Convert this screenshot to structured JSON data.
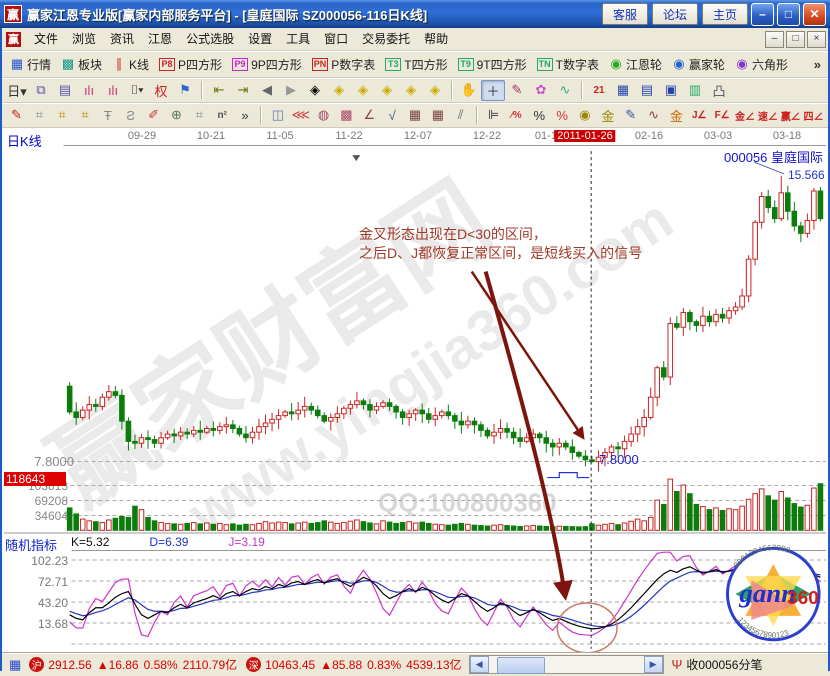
{
  "window": {
    "icon": "赢",
    "title": "赢家江恩专业版[赢家内部服务平台] - [皇庭国际  SZ000056-116日K线]",
    "buttons": [
      "客服",
      "论坛",
      "主页"
    ],
    "controls": {
      "minimize": "–",
      "maximize": "□",
      "close": "✕"
    }
  },
  "menu": {
    "icon": "赢",
    "items": [
      "文件",
      "浏览",
      "资讯",
      "江恩",
      "公式选股",
      "设置",
      "工具",
      "窗口",
      "交易委托",
      "帮助"
    ],
    "controls": [
      "–",
      "□",
      "×"
    ]
  },
  "toolbar_main": {
    "overflow": "»",
    "items": [
      {
        "name": "quotes",
        "label": "行情",
        "glyph": "▦",
        "color": "#2255cc",
        "boxed": false
      },
      {
        "name": "sectors",
        "label": "板块",
        "glyph": "▩",
        "color": "#119988",
        "boxed": false
      },
      {
        "name": "kline",
        "label": "K线",
        "glyph": "∥",
        "color": "#cc3333",
        "boxed": false
      },
      {
        "name": "p-square",
        "label": "P四方形",
        "glyph": "P8",
        "color": "#cc2222",
        "boxed": true
      },
      {
        "name": "9p-square",
        "label": "9P四方形",
        "glyph": "P9",
        "color": "#cc22cc",
        "boxed": true
      },
      {
        "name": "p-table",
        "label": "P数字表",
        "glyph": "PN",
        "color": "#cc2222",
        "boxed": true
      },
      {
        "name": "t-square",
        "label": "T四方形",
        "glyph": "T3",
        "color": "#22aa66",
        "boxed": true
      },
      {
        "name": "9t-square",
        "label": "9T四方形",
        "glyph": "T9",
        "color": "#22aa66",
        "boxed": true
      },
      {
        "name": "t-table",
        "label": "T数字表",
        "glyph": "TN",
        "color": "#22aa66",
        "boxed": true
      },
      {
        "name": "gann-wheel",
        "label": "江恩轮",
        "glyph": "◉",
        "color": "#22aa22",
        "boxed": false
      },
      {
        "name": "winner-wheel",
        "label": "赢家轮",
        "glyph": "◉",
        "color": "#2266cc",
        "boxed": false
      },
      {
        "name": "hexagon",
        "label": "六角形",
        "glyph": "◉",
        "color": "#8833cc",
        "boxed": false
      }
    ]
  },
  "toolbar_tools": {
    "items": [
      {
        "name": "period-day-dropdown",
        "glyph": "日▾",
        "color": "#333333"
      },
      {
        "name": "region-select-icon",
        "glyph": "⧉",
        "color": "#5555aa"
      },
      {
        "name": "info-panel-icon",
        "glyph": "▤",
        "color": "#5555aa"
      },
      {
        "name": "bars-small-icon",
        "glyph": "ılı",
        "color": "#cc3377"
      },
      {
        "name": "bars-large-icon",
        "glyph": "ılı",
        "color": "#cc3377"
      },
      {
        "name": "candle-style-dropdown",
        "glyph": "⌷▾",
        "color": "#333333"
      },
      {
        "name": "exrights-icon",
        "glyph": "权",
        "color": "#cc2222"
      },
      {
        "name": "flag-icon",
        "glyph": "⚑",
        "color": "#3366cc"
      },
      {
        "sep": true
      },
      {
        "name": "first-page-icon",
        "glyph": "⇤",
        "color": "#667700"
      },
      {
        "name": "last-page-icon",
        "glyph": "⇥",
        "color": "#667700"
      },
      {
        "name": "prev-bar-icon",
        "glyph": "◀",
        "color": "#666666"
      },
      {
        "name": "next-bar-icon",
        "glyph": "▶",
        "color": "#999999"
      },
      {
        "name": "zoom-out-h-icon",
        "glyph": "◈",
        "color": "#cc aa00"
      },
      {
        "name": "zoom-in-h-icon",
        "glyph": "◈",
        "color": "#ccaa00"
      },
      {
        "name": "expand-h-icon",
        "glyph": "◈",
        "color": "#ccaa00"
      },
      {
        "name": "compress-h-icon",
        "glyph": "◈",
        "color": "#ccaa00"
      },
      {
        "name": "expand-v-icon",
        "glyph": "◈",
        "color": "#ccaa00"
      },
      {
        "name": "compress-v-icon",
        "glyph": "◈",
        "color": "#ccaa00"
      },
      {
        "sep": true
      },
      {
        "name": "hand-tool-icon",
        "glyph": "✋",
        "color": "#aa7744"
      },
      {
        "name": "crosshair-tool-icon",
        "glyph": "＋",
        "color": "#333333",
        "active": true
      },
      {
        "name": "polyline-tool-icon",
        "glyph": "✎",
        "color": "#aa3366"
      },
      {
        "name": "flower-tool-icon",
        "glyph": "✿",
        "color": "#cc55cc"
      },
      {
        "name": "wave-tool-icon",
        "glyph": "∿",
        "color": "#33aa88"
      },
      {
        "sep": true
      },
      {
        "name": "calendar-21-icon",
        "glyph": "21",
        "color": "#cc2222",
        "small": true
      },
      {
        "name": "calculator-icon",
        "glyph": "▦",
        "color": "#2244aa"
      },
      {
        "name": "notes-icon",
        "glyph": "▤",
        "color": "#2244aa"
      },
      {
        "name": "save-icon",
        "glyph": "▣",
        "color": "#2244aa"
      },
      {
        "name": "chart-export-icon",
        "glyph": "▥",
        "color": "#22aa66"
      },
      {
        "name": "printer-icon",
        "glyph": "凸",
        "color": "#555566"
      }
    ]
  },
  "toolbar_draw": {
    "items": [
      {
        "name": "brush-icon",
        "glyph": "✎",
        "color": "#cc2222"
      },
      {
        "name": "grid-icon",
        "glyph": "⌗",
        "color": "#888888"
      },
      {
        "name": "gann-grid-icon",
        "glyph": "⌗",
        "color": "#bb8800"
      },
      {
        "name": "gann-grid2-icon",
        "glyph": "⌗",
        "color": "#bb8800"
      },
      {
        "name": "fan-tool-icon",
        "glyph": "Ŧ",
        "color": "#888888"
      },
      {
        "name": "arc-tool-icon",
        "glyph": "Ƨ",
        "color": "#888888"
      },
      {
        "name": "pen-red-icon",
        "glyph": "✐",
        "color": "#cc3333"
      },
      {
        "name": "circle-grid-icon",
        "glyph": "⊕",
        "color": "#557755"
      },
      {
        "name": "hash-grid-icon",
        "glyph": "⌗",
        "color": "#888888"
      },
      {
        "name": "n-square-icon",
        "glyph": "n²",
        "color": "#555555",
        "small": true
      },
      {
        "name": "more-draw-icon",
        "glyph": "»",
        "color": "#333333"
      },
      {
        "sep": true
      },
      {
        "name": "frame-tool-icon",
        "glyph": "◫",
        "color": "#6677aa"
      },
      {
        "name": "rays-icon",
        "glyph": "⋘",
        "color": "#cc4444"
      },
      {
        "name": "circle-m-icon",
        "glyph": "◍",
        "color": "#aa4466"
      },
      {
        "name": "pattern-icon",
        "glyph": "▩",
        "color": "#aa4466"
      },
      {
        "name": "angle-lines-icon",
        "glyph": "∠",
        "color": "#884444"
      },
      {
        "name": "check-wave-icon",
        "glyph": "√",
        "color": "#445588"
      },
      {
        "name": "net-icon",
        "glyph": "▦",
        "color": "#774444"
      },
      {
        "name": "net2-icon",
        "glyph": "▦",
        "color": "#774444"
      },
      {
        "name": "parallel-icon",
        "glyph": "⫽",
        "color": "#666666"
      },
      {
        "sep": true
      },
      {
        "name": "ladder-icon",
        "glyph": "⊫",
        "color": "#333333"
      },
      {
        "name": "percent-red-icon",
        "glyph": "⁄%",
        "color": "#cc3333",
        "small": true
      },
      {
        "name": "percent-icon",
        "glyph": "%",
        "color": "#333333"
      },
      {
        "name": "percent-gold-icon",
        "glyph": "%",
        "color": "#cc3333"
      },
      {
        "name": "gold-circle-icon",
        "glyph": "◉",
        "color": "#998800"
      },
      {
        "name": "gold-line-icon",
        "glyph": "金",
        "color": "#998800"
      },
      {
        "name": "pen-blue-icon",
        "glyph": "✎",
        "color": "#3355aa"
      },
      {
        "name": "wave-avg-icon",
        "glyph": "∿",
        "color": "#884444"
      },
      {
        "name": "gold-line2-icon",
        "glyph": "金",
        "color": "#cc6600"
      },
      {
        "name": "j-angle-icon",
        "glyph": "J∠",
        "color": "#cc2222",
        "small": true
      },
      {
        "name": "f-angle-icon",
        "glyph": "F∠",
        "color": "#cc2222",
        "small": true
      },
      {
        "name": "gold-angle-icon",
        "glyph": "金∠",
        "color": "#cc2222",
        "small": true
      },
      {
        "name": "speed-angle-icon",
        "glyph": "速∠",
        "color": "#cc2222",
        "small": true
      },
      {
        "name": "win-angle-icon",
        "glyph": "赢∠",
        "color": "#cc2222",
        "small": true
      },
      {
        "name": "four-angle-icon",
        "glyph": "四∠",
        "color": "#cc2222",
        "small": true
      }
    ]
  },
  "chart": {
    "pane_label": "日K线",
    "stock_label": "000056 皇庭国际",
    "high_price_label": "15.566",
    "price_axis_label": "7.8000",
    "crosshair_price_label": "7.8000",
    "volume_current_label": "118643",
    "annotation_line1": "金叉形态出现在D<30的区间，",
    "annotation_line2": "之后D、J都恢复正常区间，是短线买入的信号",
    "watermark_cn": "赢家财富网",
    "watermark_url": "www.yingjia360.com",
    "watermark_qq": "QQ:100800360",
    "kdj_header": {
      "title": "随机指标",
      "k": "K=5.32",
      "d": "D=6.39",
      "j": "J=3.19"
    },
    "logo": {
      "word": "gann",
      "number": "360",
      "digits_top": "8901234567890",
      "digits_bottom": "1234567890123"
    }
  },
  "chart_data": {
    "type": "candlestick",
    "symbol": "SZ000056",
    "stock_name": "皇庭国际",
    "period": "116日K线",
    "x_ticks": [
      "09-29",
      "10-21",
      "11-05",
      "11-22",
      "12-07",
      "12-22",
      "01-10",
      "2011-01-26",
      "02-16",
      "03-03",
      "03-18"
    ],
    "highlighted_tick": "2011-01-26",
    "price_axis_values": [
      7.8
    ],
    "volume_axis_values": [
      103813,
      69208,
      34604
    ],
    "volume_current": 118643,
    "kdj_axis_values": [
      102.23,
      72.71,
      43.2,
      13.68
    ],
    "kdj_at_crosshair": {
      "k": 5.32,
      "d": 6.39,
      "j": 3.19
    },
    "crosshair_index": 80,
    "peak": {
      "index": 109,
      "high": 15.566
    },
    "first_open": 9.85,
    "closes": [
      9.15,
      9.0,
      9.2,
      9.35,
      9.3,
      9.55,
      9.7,
      9.6,
      8.9,
      8.35,
      8.3,
      8.45,
      8.4,
      8.3,
      8.45,
      8.55,
      8.5,
      8.6,
      8.55,
      8.65,
      8.6,
      8.7,
      8.65,
      8.75,
      8.8,
      8.7,
      8.55,
      8.45,
      8.6,
      8.75,
      8.85,
      8.95,
      9.05,
      9.15,
      9.1,
      9.2,
      9.3,
      9.2,
      9.05,
      8.9,
      9.0,
      9.1,
      9.25,
      9.35,
      9.45,
      9.35,
      9.2,
      9.3,
      9.4,
      9.3,
      9.15,
      9.0,
      9.1,
      9.2,
      9.1,
      8.95,
      9.05,
      9.15,
      9.05,
      8.9,
      8.8,
      8.9,
      8.8,
      8.65,
      8.5,
      8.6,
      8.7,
      8.6,
      8.45,
      8.35,
      8.45,
      8.55,
      8.45,
      8.3,
      8.2,
      8.3,
      8.2,
      8.05,
      7.95,
      7.85,
      7.8,
      7.92,
      8.05,
      8.2,
      8.15,
      8.35,
      8.55,
      8.75,
      9.0,
      9.55,
      10.35,
      10.1,
      11.55,
      11.45,
      11.85,
      11.6,
      11.5,
      11.75,
      11.6,
      11.8,
      11.7,
      11.9,
      12.0,
      12.3,
      13.3,
      14.3,
      15.0,
      14.7,
      14.4,
      15.1,
      14.6,
      14.2,
      14.0,
      14.35,
      15.15,
      14.4
    ],
    "volumes": [
      52000,
      38000,
      26000,
      22000,
      20000,
      18000,
      24000,
      28000,
      32000,
      30000,
      56000,
      48000,
      30000,
      22000,
      18000,
      16000,
      15000,
      14000,
      16000,
      18000,
      15000,
      17000,
      14000,
      16000,
      13000,
      15000,
      12000,
      14000,
      13000,
      16000,
      20000,
      17000,
      19000,
      18000,
      15000,
      17000,
      19000,
      16000,
      18000,
      22000,
      19000,
      16000,
      18000,
      21000,
      24000,
      20000,
      17000,
      15000,
      22000,
      19000,
      16000,
      18000,
      20000,
      17000,
      19000,
      16000,
      14000,
      13000,
      12000,
      14000,
      16000,
      14000,
      12000,
      11000,
      10000,
      12000,
      13000,
      11000,
      10000,
      9000,
      10000,
      11000,
      10000,
      9000,
      8500,
      9500,
      9000,
      8500,
      8000,
      8500,
      15000,
      12000,
      14000,
      16000,
      13000,
      17000,
      21000,
      26000,
      22000,
      30000,
      70000,
      60000,
      118643,
      90000,
      105000,
      85000,
      60000,
      55000,
      48000,
      52000,
      46000,
      50000,
      48000,
      56000,
      72000,
      85000,
      96000,
      80000,
      70000,
      90000,
      75000,
      62000,
      54000,
      58000,
      98000,
      108000
    ],
    "k_values": [
      25,
      20,
      18,
      28,
      35,
      35,
      42,
      50,
      55,
      58,
      40,
      25,
      20,
      25,
      30,
      28,
      35,
      40,
      35,
      42,
      45,
      48,
      52,
      48,
      55,
      58,
      52,
      58,
      62,
      60,
      65,
      62,
      68,
      65,
      70,
      72,
      68,
      72,
      75,
      70,
      74,
      76,
      70,
      65,
      72,
      78,
      74,
      66,
      55,
      48,
      52,
      58,
      62,
      58,
      64,
      60,
      52,
      46,
      42,
      48,
      55,
      52,
      44,
      36,
      30,
      35,
      42,
      38,
      30,
      24,
      28,
      33,
      28,
      22,
      17,
      20,
      16,
      12,
      9,
      7,
      5.32,
      6,
      8,
      12,
      18,
      26,
      35,
      45,
      55,
      65,
      75,
      83,
      88,
      85,
      90,
      93,
      88,
      84,
      86,
      89,
      85,
      87,
      90,
      88,
      91,
      93,
      94,
      95,
      93,
      94,
      95,
      88,
      80,
      75,
      82,
      78
    ]
  },
  "statusbar": {
    "left_icon": "▦",
    "sh": {
      "badge": "沪",
      "value": "2912.56",
      "arrow": "▲",
      "change": "16.86",
      "pct": "0.58%",
      "turnover": "2110.79亿"
    },
    "sz": {
      "badge": "深",
      "value": "10463.45",
      "arrow": "▲",
      "change": "85.88",
      "pct": "0.83%",
      "turnover": "4539.13亿"
    },
    "signal_icon": "Ψ",
    "feed_label": "收000056分笔"
  }
}
